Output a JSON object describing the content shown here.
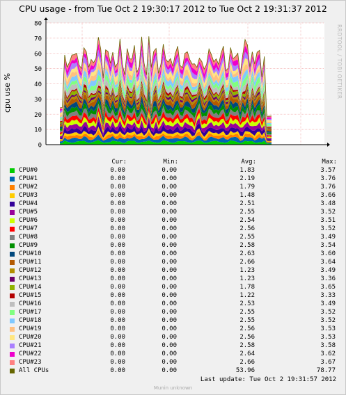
{
  "title": "CPU usage - from Tue Oct  2 19:30:17 2012 to Tue Oct  2 19:31:37 2012",
  "watermark": "RRDTOOL / TOBI OETIKER",
  "legend_headers": {
    "cur": "Cur:",
    "min": "Min:",
    "avg": "Avg:",
    "max": "Max:"
  },
  "footer": "Last update:  Tue Oct  2 19:31:57 2012",
  "credit": "Munin unknown",
  "chart_data": {
    "type": "area",
    "stacked": true,
    "ylabel": "cpu use %",
    "ylim": [
      0,
      80
    ],
    "yticks": [
      0,
      10,
      20,
      30,
      40,
      50,
      60,
      70,
      80
    ],
    "grid": true,
    "series": [
      {
        "name": "CPU#0",
        "color": "#00cc00",
        "cur": "0.00",
        "min": "0.00",
        "avg": "1.83",
        "max": "3.57"
      },
      {
        "name": "CPU#1",
        "color": "#0066b3",
        "cur": "0.00",
        "min": "0.00",
        "avg": "2.19",
        "max": "3.76"
      },
      {
        "name": "CPU#2",
        "color": "#ff8000",
        "cur": "0.00",
        "min": "0.00",
        "avg": "1.79",
        "max": "3.76"
      },
      {
        "name": "CPU#3",
        "color": "#ffcc00",
        "cur": "0.00",
        "min": "0.00",
        "avg": "1.48",
        "max": "3.66"
      },
      {
        "name": "CPU#4",
        "color": "#330099",
        "cur": "0.00",
        "min": "0.00",
        "avg": "2.51",
        "max": "3.48"
      },
      {
        "name": "CPU#5",
        "color": "#990099",
        "cur": "0.00",
        "min": "0.00",
        "avg": "2.55",
        "max": "3.52"
      },
      {
        "name": "CPU#6",
        "color": "#ccff00",
        "cur": "0.00",
        "min": "0.00",
        "avg": "2.54",
        "max": "3.51"
      },
      {
        "name": "CPU#7",
        "color": "#ff0000",
        "cur": "0.00",
        "min": "0.00",
        "avg": "2.56",
        "max": "3.52"
      },
      {
        "name": "CPU#8",
        "color": "#808080",
        "cur": "0.00",
        "min": "0.00",
        "avg": "2.55",
        "max": "3.49"
      },
      {
        "name": "CPU#9",
        "color": "#008f00",
        "cur": "0.00",
        "min": "0.00",
        "avg": "2.58",
        "max": "3.54"
      },
      {
        "name": "CPU#10",
        "color": "#00487d",
        "cur": "0.00",
        "min": "0.00",
        "avg": "2.63",
        "max": "3.60"
      },
      {
        "name": "CPU#11",
        "color": "#b35a00",
        "cur": "0.00",
        "min": "0.00",
        "avg": "2.66",
        "max": "3.64"
      },
      {
        "name": "CPU#12",
        "color": "#b38f00",
        "cur": "0.00",
        "min": "0.00",
        "avg": "1.23",
        "max": "3.49"
      },
      {
        "name": "CPU#13",
        "color": "#6b006b",
        "cur": "0.00",
        "min": "0.00",
        "avg": "1.23",
        "max": "3.36"
      },
      {
        "name": "CPU#14",
        "color": "#8fb300",
        "cur": "0.00",
        "min": "0.00",
        "avg": "1.78",
        "max": "3.65"
      },
      {
        "name": "CPU#15",
        "color": "#b30000",
        "cur": "0.00",
        "min": "0.00",
        "avg": "1.22",
        "max": "3.33"
      },
      {
        "name": "CPU#16",
        "color": "#bebebe",
        "cur": "0.00",
        "min": "0.00",
        "avg": "2.53",
        "max": "3.49"
      },
      {
        "name": "CPU#17",
        "color": "#80ff80",
        "cur": "0.00",
        "min": "0.00",
        "avg": "2.55",
        "max": "3.52"
      },
      {
        "name": "CPU#18",
        "color": "#80c9ff",
        "cur": "0.00",
        "min": "0.00",
        "avg": "2.55",
        "max": "3.52"
      },
      {
        "name": "CPU#19",
        "color": "#ffc080",
        "cur": "0.00",
        "min": "0.00",
        "avg": "2.56",
        "max": "3.53"
      },
      {
        "name": "CPU#20",
        "color": "#ffe680",
        "cur": "0.00",
        "min": "0.00",
        "avg": "2.56",
        "max": "3.53"
      },
      {
        "name": "CPU#21",
        "color": "#aa80ff",
        "cur": "0.00",
        "min": "0.00",
        "avg": "2.58",
        "max": "3.58"
      },
      {
        "name": "CPU#22",
        "color": "#ee00cc",
        "cur": "0.00",
        "min": "0.00",
        "avg": "2.64",
        "max": "3.62"
      },
      {
        "name": "CPU#23",
        "color": "#ff8080",
        "cur": "0.00",
        "min": "0.00",
        "avg": "2.66",
        "max": "3.67"
      }
    ],
    "total": {
      "name": "All CPUs",
      "color": "#666600",
      "cur": "0.00",
      "min": "0.00",
      "avg": "53.96",
      "max": "78.77"
    }
  }
}
